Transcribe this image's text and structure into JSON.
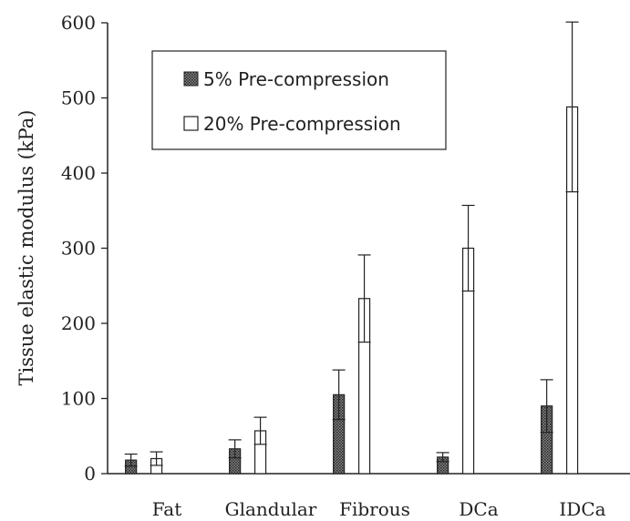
{
  "chart_data": {
    "type": "bar",
    "ylabel": "Tissue elastic modulus (kPa)",
    "xlabel": "",
    "ylim": [
      0,
      600
    ],
    "yticks": [
      0,
      100,
      200,
      300,
      400,
      500,
      600
    ],
    "categories": [
      "Fat",
      "Glandular",
      "Fibrous",
      "DCa",
      "IDCa"
    ],
    "series": [
      {
        "name": "5% Pre-compression",
        "pattern": "dark-dotted",
        "values": [
          18,
          33,
          105,
          22,
          90
        ],
        "error": [
          8,
          12,
          33,
          6,
          35
        ]
      },
      {
        "name": "20% Pre-compression",
        "pattern": "open",
        "values": [
          20,
          57,
          233,
          300,
          488
        ],
        "error": [
          9,
          18,
          58,
          57,
          113
        ]
      }
    ],
    "legend_position": "top-left-center",
    "grid": false
  }
}
